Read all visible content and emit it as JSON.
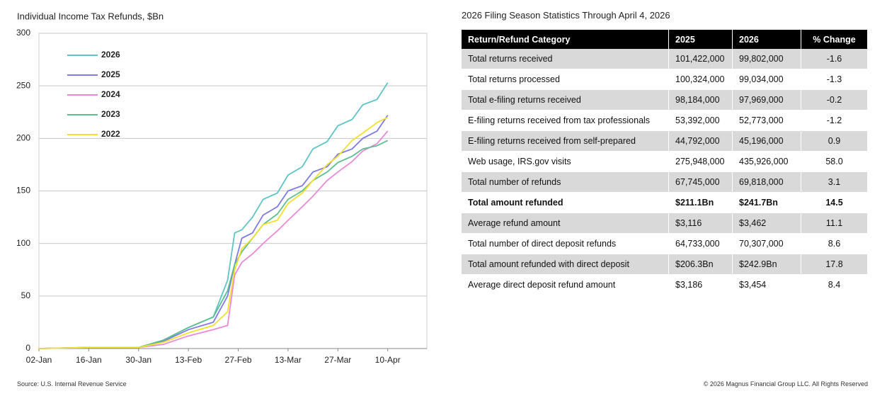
{
  "chart_data": {
    "type": "line",
    "title": "Individual Income Tax Refunds, $Bn",
    "x": [
      "02-Jan",
      "16-Jan",
      "30-Jan",
      "06-Feb",
      "13-Feb",
      "20-Feb",
      "24-Feb",
      "26-Feb",
      "28-Feb",
      "03-Mar",
      "06-Mar",
      "10-Mar",
      "13-Mar",
      "17-Mar",
      "20-Mar",
      "24-Mar",
      "27-Mar",
      "31-Mar",
      "03-Apr",
      "07-Apr",
      "10-Apr"
    ],
    "xlim": [
      "02-Jan",
      "21-Apr"
    ],
    "xticks": [
      "02-Jan",
      "16-Jan",
      "30-Jan",
      "13-Feb",
      "27-Feb",
      "13-Mar",
      "27-Mar",
      "10-Apr"
    ],
    "ylim": [
      0,
      300
    ],
    "yticks": [
      0,
      50,
      100,
      150,
      200,
      250,
      300
    ],
    "grid": true,
    "legend": "top-left",
    "series": [
      {
        "name": "2026",
        "color": "#5ec4c6",
        "values": [
          0,
          1,
          1,
          8,
          20,
          30,
          65,
          110,
          113,
          125,
          142,
          148,
          165,
          173,
          190,
          197,
          212,
          218,
          232,
          237,
          253
        ]
      },
      {
        "name": "2025",
        "color": "#7f7ae6",
        "values": [
          0,
          1,
          1,
          7,
          18,
          25,
          50,
          80,
          105,
          110,
          127,
          135,
          150,
          155,
          168,
          173,
          185,
          190,
          200,
          207,
          222
        ]
      },
      {
        "name": "2024",
        "color": "#e98ad9",
        "values": [
          0,
          1,
          1,
          4,
          12,
          18,
          22,
          70,
          82,
          90,
          100,
          112,
          122,
          135,
          145,
          160,
          168,
          178,
          188,
          195,
          207
        ]
      },
      {
        "name": "2023",
        "color": "#5cbf8f",
        "values": [
          0,
          1,
          1,
          8,
          20,
          30,
          55,
          80,
          92,
          105,
          118,
          128,
          142,
          150,
          160,
          168,
          177,
          183,
          190,
          193,
          198
        ]
      },
      {
        "name": "2022",
        "color": "#f2e02a",
        "values": [
          0,
          1,
          1,
          6,
          15,
          22,
          35,
          75,
          95,
          105,
          118,
          122,
          138,
          148,
          160,
          175,
          183,
          198,
          205,
          215,
          220
        ]
      }
    ]
  },
  "table": {
    "title": "2026 Filing Season Statistics Through April 4, 2026",
    "columns": [
      "Return/Refund Category",
      "2025",
      "2026",
      "% Change"
    ],
    "rows": [
      [
        "Total returns received",
        "101,422,000",
        "99,802,000",
        "-1.6"
      ],
      [
        "Total returns processed",
        "100,324,000",
        "99,034,000",
        "-1.3"
      ],
      [
        "Total e-filing returns received",
        "98,184,000",
        "97,969,000",
        "-0.2"
      ],
      [
        "E-filing returns received from tax professionals",
        "53,392,000",
        "52,773,000",
        "-1.2"
      ],
      [
        "E-filing returns received from self-prepared",
        "44,792,000",
        "45,196,000",
        "0.9"
      ],
      [
        "Web usage, IRS.gov visits",
        "275,948,000",
        "435,926,000",
        "58.0"
      ],
      [
        "Total number of refunds",
        "67,745,000",
        "69,818,000",
        "3.1"
      ],
      [
        "Total amount refunded",
        "$211.1Bn",
        "$241.7Bn",
        "14.5"
      ],
      [
        "Average refund amount",
        "$3,116",
        "$3,462",
        "11.1"
      ],
      [
        "Total number of direct deposit refunds",
        "64,733,000",
        "70,307,000",
        "8.6"
      ],
      [
        "Total amount refunded with direct deposit",
        "$206.3Bn",
        "$242.9Bn",
        "17.8"
      ],
      [
        "Average direct deposit refund amount",
        "$3,186",
        "$3,454",
        "8.4"
      ]
    ]
  },
  "footer": {
    "source": "Source: U.S. Internal Revenue Service",
    "copyright": "© 2026 Magnus Financial Group LLC. All Rights Reserved"
  }
}
